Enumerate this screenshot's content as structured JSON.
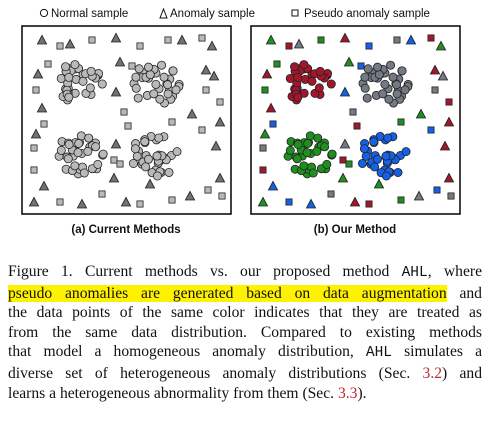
{
  "legend": {
    "normal": "Normal sample",
    "anomaly": "Anomaly sample",
    "pseudo": "Pseudo anomaly sample"
  },
  "panels": {
    "left_label": "(a) Current Methods",
    "right_label": "(b) Our Method"
  },
  "colors": {
    "normal_gray": "#b9b9b9",
    "cluster_red": "#a3172d",
    "cluster_gray": "#737a84",
    "cluster_green": "#1f8f1f",
    "cluster_blue": "#1460e6",
    "pseudo_gray": "#b9b9b9",
    "highlight": "#fff200",
    "ref_red": "#c0262d"
  },
  "caption": {
    "l1a": "Figure 1. Current methods vs. our proposed method ",
    "l1b": "AHL",
    "l1c": ", where",
    "l2a": "pseudo anomalies are generated based on data augmentation",
    "l2b": " and",
    "l3": "the data points of the same color indicates that they are treated as",
    "l4": "from the same data distribution.  Compared to existing methods",
    "l5a": "that model a homogeneous anomaly distribution, ",
    "l5b": "AHL",
    "l5c": " simulates a",
    "l6a": "diverse set of heterogeneous anomaly distributions (Sec. ",
    "l6b": "3.2",
    "l6c": ") and",
    "l7a": "learns a heterogeneous abnormality from them (Sec. ",
    "l7b": "3.3",
    "l7c": ")."
  }
}
